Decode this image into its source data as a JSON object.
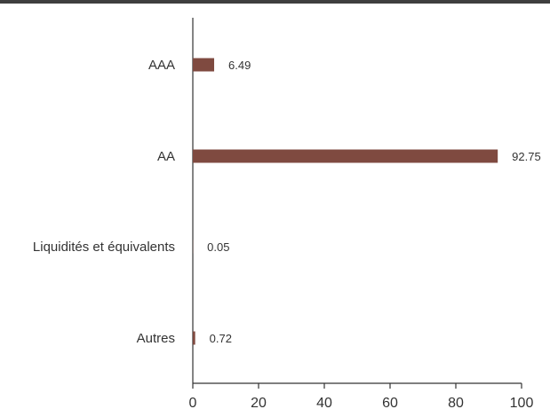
{
  "chart_data": {
    "type": "bar",
    "orientation": "horizontal",
    "categories": [
      "AAA",
      "AA",
      "Liquidités et équivalents",
      "Autres"
    ],
    "values": [
      6.49,
      92.75,
      0.05,
      0.72
    ],
    "value_labels": [
      "6.49",
      "92.75",
      "0.05",
      "0.72"
    ],
    "xlim": [
      0,
      100
    ],
    "xticks": [
      0,
      20,
      40,
      60,
      80,
      100
    ],
    "grid": false,
    "legend": "none",
    "bar_color": "#7f4a40",
    "axis_color": "#333333",
    "title": "",
    "xlabel": "",
    "ylabel": ""
  }
}
